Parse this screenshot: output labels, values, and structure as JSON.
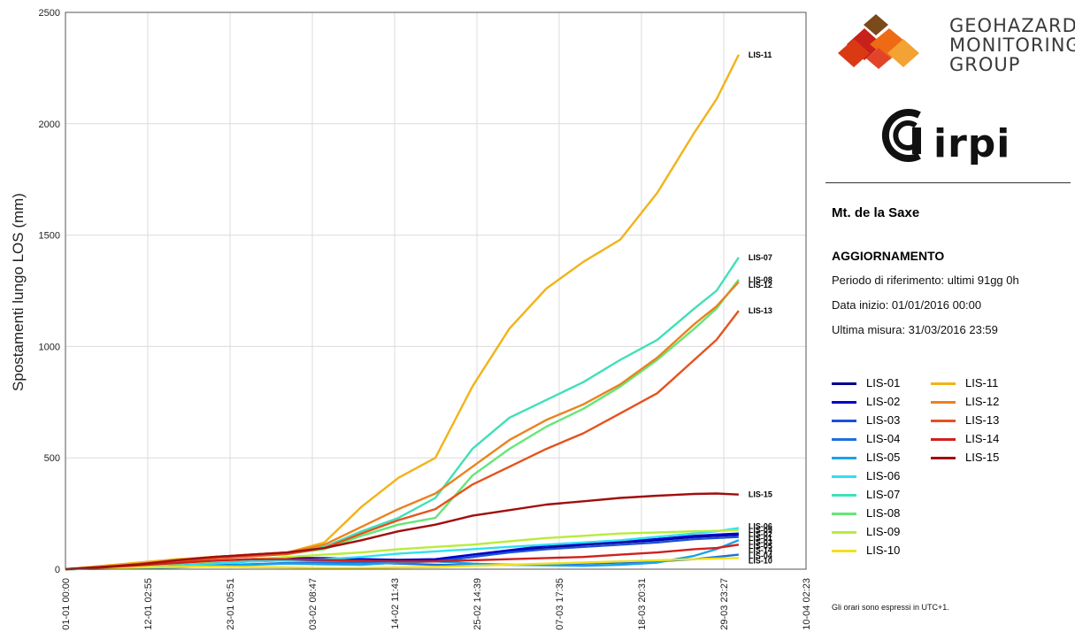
{
  "logo": {
    "group_line1": "GEOHAZARD",
    "group_line2": "MONITORING",
    "group_line3": "GROUP",
    "irpi": "irpi"
  },
  "info": {
    "station": "Mt. de la Saxe",
    "heading": "AGGIORNAMENTO",
    "period": "Periodo di riferimento: ultimi 91gg 0h",
    "start": "Data inizio: 01/01/2016 00:00",
    "last": "Ultima misura:  31/03/2016 23:59"
  },
  "footnote": "Gli orari sono espressi in UTC+1.",
  "chart_data": {
    "type": "line",
    "title": "",
    "xlabel": "",
    "ylabel": "Spostamenti lungo LOS (mm)",
    "ylim": [
      0,
      2500
    ],
    "yticks": [
      0,
      500,
      1000,
      1500,
      2000,
      2500
    ],
    "xlim": [
      0,
      100.1
    ],
    "x_unit": "days since 01-01 00:00",
    "xticks": [
      {
        "x": 0,
        "label": "01-01 00:00"
      },
      {
        "x": 11.12,
        "label": "12-01 02:55"
      },
      {
        "x": 22.25,
        "label": "23-01 05:51"
      },
      {
        "x": 33.37,
        "label": "03-02 08:47"
      },
      {
        "x": 44.49,
        "label": "14-02 11:43"
      },
      {
        "x": 55.61,
        "label": "25-02 14:39"
      },
      {
        "x": 66.73,
        "label": "07-03 17:35"
      },
      {
        "x": 77.85,
        "label": "18-03 20:31"
      },
      {
        "x": 88.98,
        "label": "29-03 23:27"
      },
      {
        "x": 100.1,
        "label": "10-04 02:23"
      }
    ],
    "grid": true,
    "legend_position": "right",
    "x": [
      0,
      5,
      10,
      15,
      20,
      25,
      30,
      35,
      40,
      45,
      50,
      55,
      60,
      65,
      70,
      75,
      80,
      85,
      88,
      91
    ],
    "series": [
      {
        "name": "LIS-01",
        "color": "#00008b",
        "values": [
          0,
          5,
          12,
          22,
          35,
          45,
          50,
          50,
          45,
          40,
          38,
          55,
          80,
          95,
          110,
          120,
          130,
          145,
          150,
          155
        ]
      },
      {
        "name": "LIS-02",
        "color": "#0000cd",
        "values": [
          0,
          4,
          10,
          20,
          30,
          38,
          45,
          48,
          45,
          42,
          45,
          65,
          85,
          105,
          115,
          125,
          135,
          150,
          155,
          160
        ]
      },
      {
        "name": "LIS-03",
        "color": "#1f4fd8",
        "values": [
          0,
          4,
          10,
          18,
          28,
          35,
          40,
          40,
          38,
          35,
          35,
          55,
          75,
          90,
          100,
          110,
          120,
          135,
          140,
          145
        ]
      },
      {
        "name": "LIS-04",
        "color": "#1e6fdc",
        "values": [
          0,
          3,
          6,
          10,
          18,
          22,
          28,
          30,
          30,
          25,
          20,
          18,
          20,
          22,
          25,
          30,
          35,
          45,
          55,
          65
        ]
      },
      {
        "name": "LIS-05",
        "color": "#1aa3e8",
        "values": [
          0,
          2,
          5,
          8,
          15,
          20,
          25,
          22,
          20,
          30,
          35,
          25,
          20,
          18,
          15,
          20,
          30,
          60,
          90,
          130
        ]
      },
      {
        "name": "LIS-06",
        "color": "#2fe0f0",
        "values": [
          0,
          3,
          8,
          15,
          25,
          35,
          40,
          45,
          55,
          70,
          80,
          90,
          100,
          110,
          120,
          130,
          145,
          160,
          170,
          185
        ]
      },
      {
        "name": "LIS-07",
        "color": "#40e0b8",
        "values": [
          0,
          10,
          25,
          40,
          55,
          65,
          75,
          100,
          170,
          230,
          320,
          540,
          680,
          760,
          840,
          940,
          1030,
          1170,
          1250,
          1400
        ]
      },
      {
        "name": "LIS-08",
        "color": "#66e676",
        "values": [
          0,
          8,
          22,
          35,
          50,
          60,
          70,
          90,
          150,
          200,
          230,
          420,
          540,
          640,
          720,
          820,
          940,
          1080,
          1170,
          1300
        ]
      },
      {
        "name": "LIS-09",
        "color": "#b8ec3c",
        "values": [
          0,
          6,
          15,
          25,
          35,
          45,
          55,
          65,
          75,
          90,
          100,
          110,
          125,
          140,
          150,
          160,
          165,
          170,
          172,
          175
        ]
      },
      {
        "name": "LIS-10",
        "color": "#f0e020",
        "values": [
          0,
          4,
          8,
          10,
          12,
          10,
          8,
          5,
          5,
          8,
          10,
          15,
          20,
          25,
          30,
          35,
          40,
          45,
          48,
          50
        ]
      },
      {
        "name": "LIS-11",
        "color": "#f2b318",
        "values": [
          0,
          15,
          30,
          45,
          55,
          65,
          75,
          120,
          280,
          410,
          500,
          820,
          1080,
          1260,
          1380,
          1480,
          1690,
          1960,
          2110,
          2310
        ]
      },
      {
        "name": "LIS-12",
        "color": "#ea8220",
        "values": [
          0,
          10,
          25,
          40,
          55,
          65,
          75,
          110,
          190,
          270,
          340,
          460,
          580,
          670,
          740,
          830,
          950,
          1100,
          1180,
          1290
        ]
      },
      {
        "name": "LIS-13",
        "color": "#e6521c",
        "values": [
          0,
          10,
          22,
          35,
          48,
          58,
          68,
          95,
          160,
          220,
          270,
          380,
          460,
          540,
          610,
          700,
          790,
          940,
          1030,
          1160
        ]
      },
      {
        "name": "LIS-14",
        "color": "#d0201c",
        "values": [
          0,
          8,
          18,
          28,
          38,
          45,
          45,
          42,
          38,
          35,
          35,
          40,
          45,
          50,
          55,
          65,
          75,
          90,
          95,
          110
        ]
      },
      {
        "name": "LIS-15",
        "color": "#a00e0e",
        "values": [
          0,
          10,
          22,
          40,
          55,
          65,
          75,
          95,
          130,
          170,
          200,
          240,
          265,
          290,
          305,
          320,
          330,
          338,
          340,
          335
        ]
      }
    ],
    "end_labels": [
      {
        "name": "LIS-11",
        "y": 2310
      },
      {
        "name": "LIS-07",
        "y": 1400
      },
      {
        "name": "LIS-08",
        "y": 1300
      },
      {
        "name": "LIS-12",
        "y": 1275
      },
      {
        "name": "LIS-13",
        "y": 1160
      },
      {
        "name": "LIS-15",
        "y": 335
      },
      {
        "name": "LIS-06",
        "y": 192
      },
      {
        "name": "LIS-09",
        "y": 178
      },
      {
        "name": "LIS-02",
        "y": 164
      },
      {
        "name": "LIS-01",
        "y": 152
      },
      {
        "name": "LIS-03",
        "y": 140
      },
      {
        "name": "LIS-05",
        "y": 128
      },
      {
        "name": "LIS-14",
        "y": 98
      },
      {
        "name": "LIS-04",
        "y": 60
      },
      {
        "name": "LIS-10",
        "y": 38
      }
    ]
  }
}
